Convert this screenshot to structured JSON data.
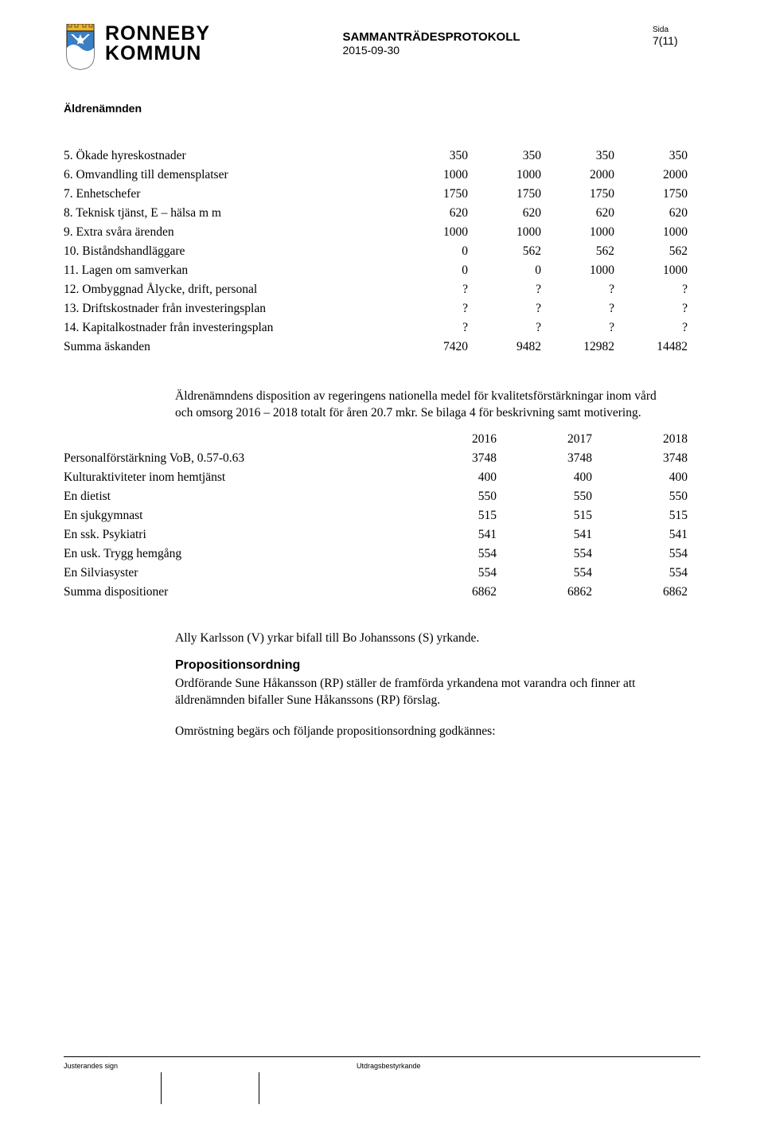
{
  "header": {
    "wordmark_top": "RONNEBY",
    "wordmark_bottom": "KOMMUN",
    "wordmark_fontsize": 25,
    "wordmark_color": "#000000",
    "shield_colors": {
      "crown_fill": "#f0b429",
      "crown_stroke": "#2a2a2a",
      "field": "#3a7fc2",
      "wave_white": "#ffffff",
      "outline": "#2a2a2a"
    },
    "title": "SAMMANTRÄDESPROTOKOLL",
    "title_fontsize": 15,
    "date": "2015-09-30",
    "date_fontsize": 14,
    "sida_label": "Sida",
    "sida_fontsize": 10,
    "page_num": "7(11)",
    "page_num_fontsize": 14
  },
  "committee": {
    "label": "Äldrenämnden",
    "fontsize": 14
  },
  "table1": {
    "rows": [
      {
        "label": "5. Ökade hyreskostnader",
        "c": [
          "350",
          "350",
          "350",
          "350"
        ]
      },
      {
        "label": "6. Omvandling till demensplatser",
        "c": [
          "1000",
          "1000",
          "2000",
          "2000"
        ]
      },
      {
        "label": "7. Enhetschefer",
        "c": [
          "1750",
          "1750",
          "1750",
          "1750"
        ]
      },
      {
        "label": "8. Teknisk tjänst, E – hälsa m m",
        "c": [
          "620",
          "620",
          "620",
          "620"
        ]
      },
      {
        "label": "9. Extra svåra ärenden",
        "c": [
          "1000",
          "1000",
          "1000",
          "1000"
        ]
      },
      {
        "label": "10. Biståndshandläggare",
        "c": [
          "0",
          "562",
          "562",
          "562"
        ]
      },
      {
        "label": "11. Lagen om samverkan",
        "c": [
          "0",
          "0",
          "1000",
          "1000"
        ]
      },
      {
        "label": "12. Ombyggnad Ålycke, drift, personal",
        "c": [
          "?",
          "?",
          "?",
          "?"
        ]
      },
      {
        "label": "13. Driftskostnader från investeringsplan",
        "c": [
          "?",
          "?",
          "?",
          "?"
        ]
      },
      {
        "label": "14. Kapitalkostnader från investeringsplan",
        "c": [
          "?",
          "?",
          "?",
          "?"
        ]
      },
      {
        "label": "Summa äskanden",
        "c": [
          "7420",
          "9482",
          "12982",
          "14482"
        ]
      }
    ]
  },
  "disposition_intro": "Äldrenämndens disposition av regeringens nationella medel för kvalitetsförstärkningar inom vård och omsorg 2016 – 2018 totalt för åren 20.7 mkr. Se bilaga 4 för beskrivning samt motivering.",
  "table2": {
    "year_header": [
      "2016",
      "2017",
      "2018"
    ],
    "rows": [
      {
        "label": "Personalförstärkning VoB, 0.57-0.63",
        "c": [
          "3748",
          "3748",
          "3748"
        ]
      },
      {
        "label": "Kulturaktiviteter inom hemtjänst",
        "c": [
          "400",
          "400",
          "400"
        ]
      },
      {
        "label": "En dietist",
        "c": [
          "550",
          "550",
          "550"
        ]
      },
      {
        "label": "En sjukgymnast",
        "c": [
          "515",
          "515",
          "515"
        ]
      },
      {
        "label": "En ssk. Psykiatri",
        "c": [
          "541",
          "541",
          "541"
        ]
      },
      {
        "label": "En usk. Trygg hemgång",
        "c": [
          "554",
          "554",
          "554"
        ]
      },
      {
        "label": "En Silviasyster",
        "c": [
          "554",
          "554",
          "554"
        ]
      },
      {
        "label": "Summa dispositioner",
        "c": [
          "6862",
          "6862",
          "6862"
        ]
      }
    ]
  },
  "after_table_para": "Ally Karlsson (V) yrkar bifall till Bo Johanssons (S) yrkande.",
  "prop_heading": "Propositionsordning",
  "prop_para": "Ordförande Sune Håkansson (RP) ställer de framförda yrkandena mot varandra och finner att äldrenämnden bifaller Sune Håkanssons (RP) förslag.",
  "vote_para": "Omröstning begärs och följande propositionsordning godkännes:",
  "footer": {
    "left_label": "Justerandes sign",
    "right_label": "Utdragsbestyrkande",
    "fontsize": 9
  },
  "colors": {
    "text": "#000000",
    "background": "#ffffff",
    "rule": "#000000"
  }
}
